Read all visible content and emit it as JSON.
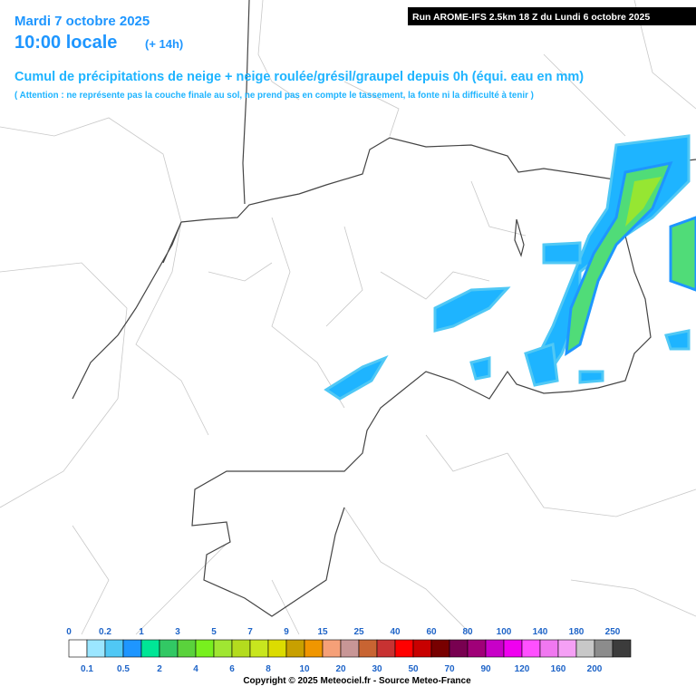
{
  "header": {
    "date": "Mardi 7 octobre 2025",
    "time": "10:00 locale",
    "lead": "(+ 14h)",
    "run": "Run AROME-IFS 2.5km 18 Z du Lundi 6 octobre 2025",
    "title": "Cumul de précipitations de neige + neige roulée/grésil/graupel depuis 0h (équi. eau en mm)",
    "note": "( Attention : ne représente pas la couche finale au sol, ne prend pas en compte le tassement, la fonte ni la difficulté à tenir )"
  },
  "legend": {
    "items": [
      {
        "label": "0",
        "color": "#ffffff"
      },
      {
        "label": "0.1",
        "color": "#9be6ff"
      },
      {
        "label": "0.2",
        "color": "#50c8f5"
      },
      {
        "label": "0.5",
        "color": "#1e96ff"
      },
      {
        "label": "1",
        "color": "#00e696"
      },
      {
        "label": "2",
        "color": "#32c864"
      },
      {
        "label": "3",
        "color": "#5ad23c"
      },
      {
        "label": "4",
        "color": "#78f01e"
      },
      {
        "label": "5",
        "color": "#a0e632"
      },
      {
        "label": "6",
        "color": "#b4dc1e"
      },
      {
        "label": "7",
        "color": "#c8e61e"
      },
      {
        "label": "8",
        "color": "#dcdc00"
      },
      {
        "label": "9",
        "color": "#c8a000"
      },
      {
        "label": "10",
        "color": "#f09600"
      },
      {
        "label": "15",
        "color": "#f5a078"
      },
      {
        "label": "20",
        "color": "#c89696"
      },
      {
        "label": "25",
        "color": "#c86432"
      },
      {
        "label": "30",
        "color": "#c83232"
      },
      {
        "label": "40",
        "color": "#ff0000"
      },
      {
        "label": "50",
        "color": "#c80000"
      },
      {
        "label": "60",
        "color": "#780000"
      },
      {
        "label": "70",
        "color": "#780050"
      },
      {
        "label": "80",
        "color": "#a00078"
      },
      {
        "label": "90",
        "color": "#c800c8"
      },
      {
        "label": "100",
        "color": "#f000f0"
      },
      {
        "label": "120",
        "color": "#ff50ff"
      },
      {
        "label": "140",
        "color": "#f078f0"
      },
      {
        "label": "160",
        "color": "#f5a0f5"
      },
      {
        "label": "180",
        "color": "#c8c8c8"
      },
      {
        "label": "200",
        "color": "#8c8c8c"
      },
      {
        "label": "250",
        "color": "#3c3c3c"
      }
    ]
  },
  "footer": {
    "copyright": "Copyright © 2025 Meteociel.fr - Source Meteo-France"
  }
}
